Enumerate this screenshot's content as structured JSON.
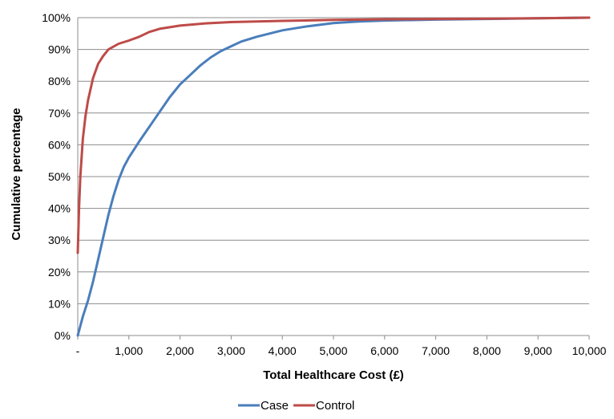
{
  "chart_data": {
    "type": "line",
    "title": "",
    "xlabel": "Total Healthcare Cost (£)",
    "ylabel": "Cumulative percentage",
    "xlim": [
      0,
      10000
    ],
    "ylim": [
      0,
      100
    ],
    "grid": "horizontal",
    "legend_position": "bottom-center",
    "x_tick_labels": [
      "-",
      "1,000",
      "2,000",
      "3,000",
      "4,000",
      "5,000",
      "6,000",
      "7,000",
      "8,000",
      "9,000",
      "10,000"
    ],
    "y_tick_labels": [
      "0%",
      "10%",
      "20%",
      "30%",
      "40%",
      "50%",
      "60%",
      "70%",
      "80%",
      "90%",
      "100%"
    ],
    "series": [
      {
        "name": "Case",
        "color": "#4A7EBB",
        "x": [
          0,
          50,
          100,
          200,
          300,
          400,
          500,
          600,
          700,
          800,
          900,
          1000,
          1200,
          1500,
          1800,
          2000,
          2200,
          2400,
          2600,
          2800,
          3000,
          3200,
          3500,
          4000,
          4500,
          5000,
          5500,
          6000,
          7000,
          8000,
          9000,
          10000
        ],
        "y": [
          0,
          3,
          6,
          11,
          17,
          24,
          31,
          38,
          44,
          49,
          53,
          56,
          61,
          68,
          75,
          79,
          82,
          85,
          87.5,
          89.5,
          91,
          92.5,
          94,
          96,
          97.3,
          98.3,
          98.8,
          99.1,
          99.4,
          99.6,
          99.8,
          100
        ]
      },
      {
        "name": "Control",
        "color": "#BE4B48",
        "x": [
          0,
          25,
          50,
          100,
          150,
          200,
          300,
          400,
          500,
          600,
          800,
          1000,
          1200,
          1400,
          1600,
          2000,
          2500,
          3000,
          4000,
          5000,
          6000,
          7000,
          8000,
          9000,
          10000
        ],
        "y": [
          26,
          40,
          50,
          62,
          69,
          74,
          81,
          85.5,
          88,
          90,
          91.8,
          92.8,
          94,
          95.5,
          96.5,
          97.5,
          98.2,
          98.6,
          99,
          99.3,
          99.5,
          99.6,
          99.7,
          99.8,
          100
        ]
      }
    ]
  }
}
